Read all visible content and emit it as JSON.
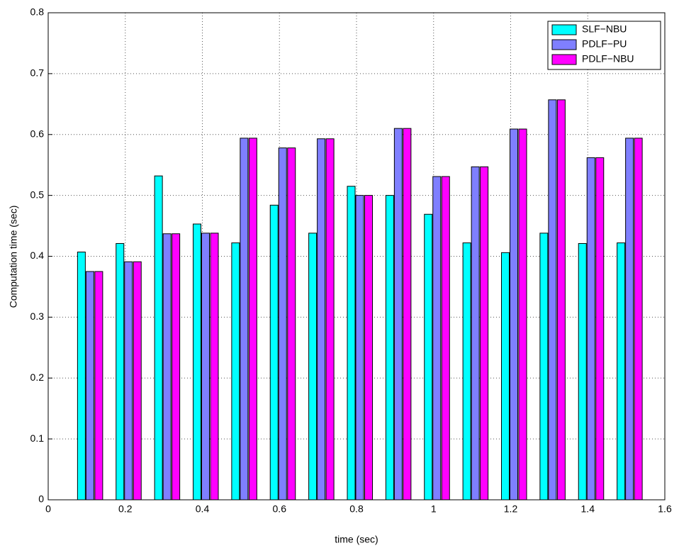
{
  "chart_data": {
    "type": "bar",
    "x_label": "time (sec)",
    "y_label": "Computation time (sec)",
    "x": [
      0.1,
      0.2,
      0.3,
      0.4,
      0.5,
      0.6,
      0.7,
      0.8,
      0.9,
      1,
      1.1,
      1.2,
      1.3,
      1.4,
      1.5
    ],
    "series": [
      {
        "name": "SLF−NBU",
        "color": "#00ffff",
        "values": [
          0.407,
          0.421,
          0.532,
          0.453,
          0.422,
          0.484,
          0.438,
          0.515,
          0.5,
          0.469,
          0.422,
          0.406,
          0.438,
          0.421,
          0.422
        ]
      },
      {
        "name": "PDLF−PU",
        "color": "#7f7fff",
        "values": [
          0.375,
          0.391,
          0.437,
          0.438,
          0.594,
          0.578,
          0.593,
          0.5,
          0.61,
          0.531,
          0.547,
          0.609,
          0.657,
          0.562,
          0.594
        ]
      },
      {
        "name": "PDLF−NBU",
        "color": "#ff00ff",
        "values": [
          0.375,
          0.391,
          0.437,
          0.438,
          0.594,
          0.578,
          0.593,
          0.5,
          0.61,
          0.531,
          0.547,
          0.609,
          0.657,
          0.562,
          0.594
        ]
      }
    ],
    "xlim": [
      0,
      1.6
    ],
    "xticks": [
      0,
      0.2,
      0.4,
      0.6,
      0.8,
      1,
      1.2,
      1.4,
      1.6
    ],
    "ylim": [
      0,
      0.8
    ],
    "yticks": [
      0,
      0.1,
      0.2,
      0.3,
      0.4,
      0.5,
      0.6,
      0.7,
      0.8
    ],
    "grid": true,
    "legend": "northeast"
  }
}
